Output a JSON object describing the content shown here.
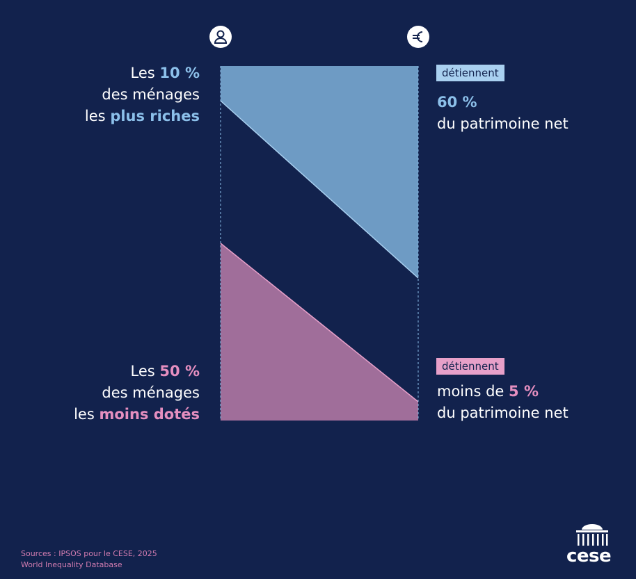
{
  "top": {
    "left": {
      "prefix": "Les",
      "highlight": "10 %",
      "line2": "des ménages",
      "line3_prefix": "les",
      "line3_highlight": "plus riches"
    },
    "badge": "détiennent",
    "value": "60 %",
    "caption": "du patrimoine net"
  },
  "bottom": {
    "left": {
      "prefix": "Les",
      "highlight": "50 %",
      "line2": "des ménages",
      "line3_prefix": "les",
      "line3_highlight": "moins dotés"
    },
    "badge": "détiennent",
    "value_prefix": "moins de",
    "value": "5 %",
    "caption": "du patrimoine net"
  },
  "footer": {
    "sources": [
      "Sources : IPSOS pour le CESE, 2025",
      "World Inequality Database"
    ],
    "logo": "cese"
  }
}
